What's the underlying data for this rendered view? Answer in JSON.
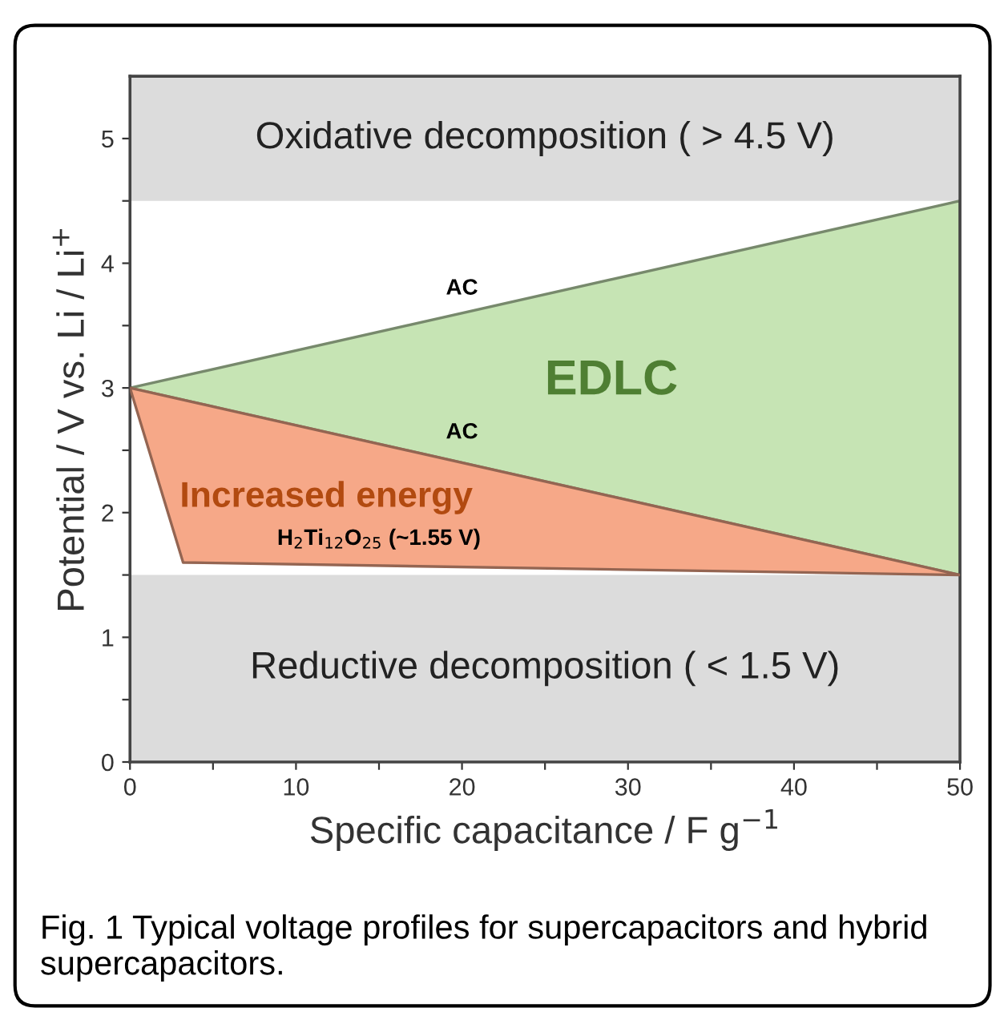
{
  "chart_data": {
    "type": "area",
    "xlabel": "Specific capacitance / F g$^{−1}$",
    "ylabel": "Potential / V vs. Li / Li$^{+}$",
    "series": [
      {
        "name": "EDLC",
        "color": "#c6e4b4",
        "x": [
          0,
          50,
          50
        ],
        "values": [
          3,
          4.5,
          1.5
        ]
      },
      {
        "name": "Increased energy",
        "color": "#f6a888",
        "x": [
          0,
          50,
          3.2
        ],
        "values": [
          3,
          1.5,
          1.6
        ]
      }
    ],
    "bands": [
      {
        "axis": "y",
        "from": 4.5,
        "to": 5.5,
        "label": "Oxidative decomposition ( > 4.5 V)",
        "color": "#dcdcdc"
      },
      {
        "axis": "y",
        "from": 0,
        "to": 1.5,
        "label": "Reductive decomposition ( < 1.5 V)",
        "color": "#dcdcdc"
      }
    ],
    "annotations": [
      "Fig. 1 Typical voltage profiles for supercapacitors and hybrid supercapacitors.",
      "AC",
      "AC",
      "H$_{2}$Ti$_{12}$O$_{25}$ (~1.55 V)"
    ],
    "xlim": [
      0,
      50
    ],
    "xticks": [
      0,
      {
        "value": 5,
        "label": null
      },
      10,
      {
        "value": 15,
        "label": null
      },
      20,
      {
        "value": 25,
        "label": null
      },
      30,
      {
        "value": 35,
        "label": null
      },
      40,
      {
        "value": 45,
        "label": null
      },
      50
    ],
    "ylim": [
      0,
      5.5
    ],
    "yticks": [
      0,
      {
        "value": 0.5,
        "label": null
      },
      1,
      {
        "value": 1.5,
        "label": null
      },
      2,
      {
        "value": 2.5,
        "label": null
      },
      3,
      {
        "value": 3.5,
        "label": null
      },
      4,
      {
        "value": 4.5,
        "label": null
      },
      5
    ],
    "grid": false,
    "legend": false
  }
}
